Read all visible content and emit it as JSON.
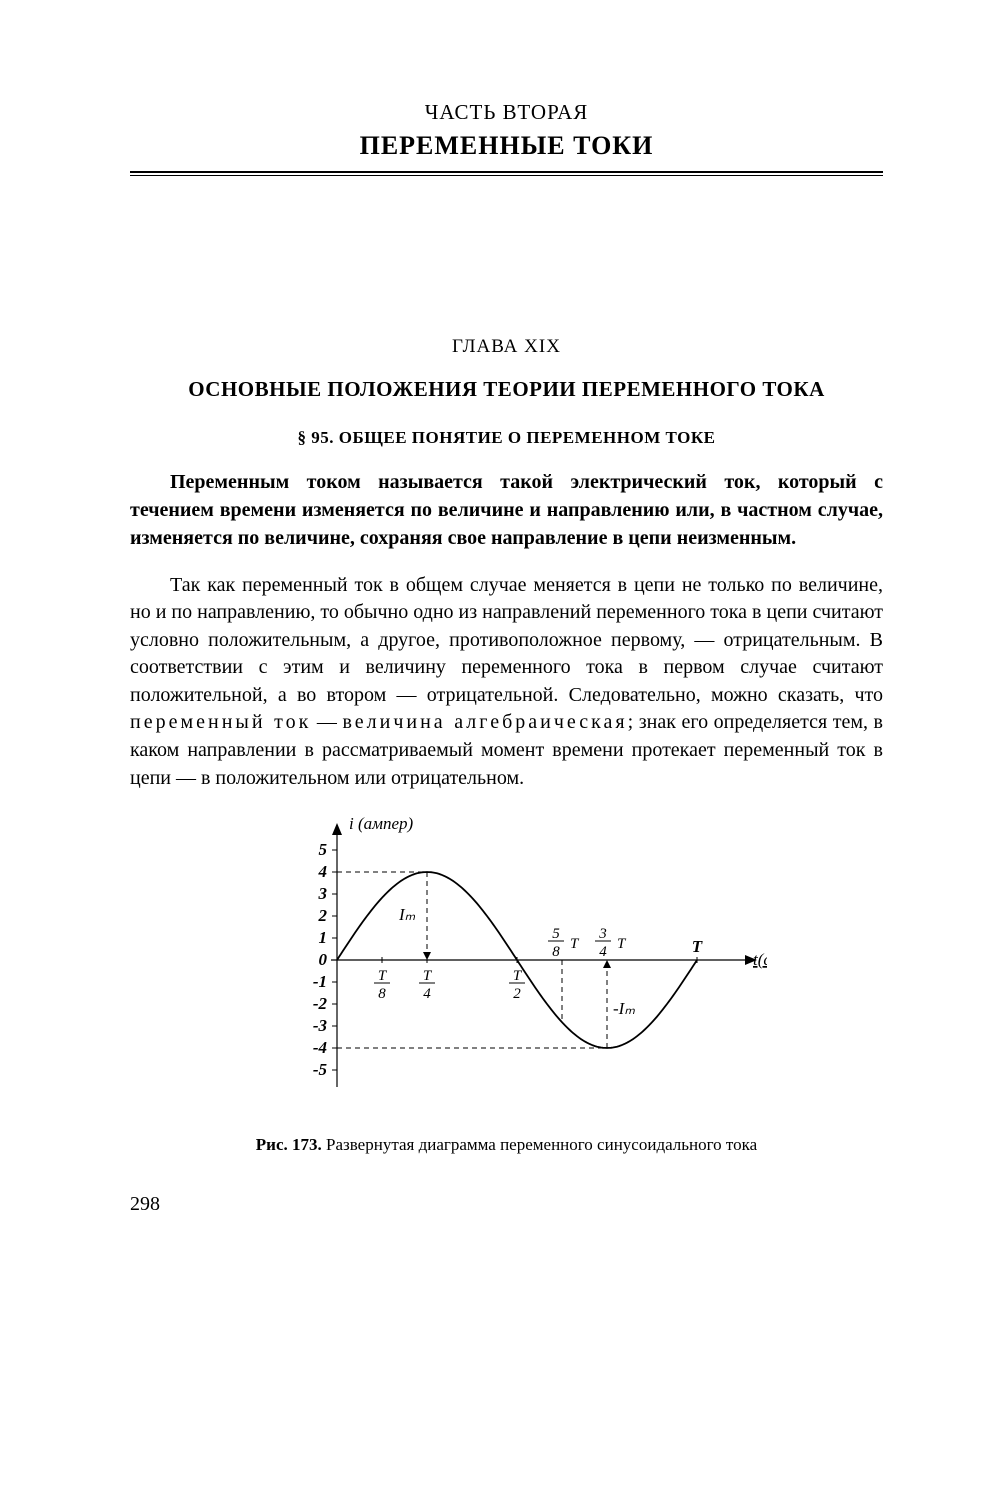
{
  "header": {
    "part_label": "ЧАСТЬ ВТОРАЯ",
    "part_title": "ПЕРЕМЕННЫЕ ТОКИ"
  },
  "chapter": {
    "label": "ГЛАВА XIX",
    "title": "ОСНОВНЫЕ ПОЛОЖЕНИЯ ТЕОРИИ ПЕРЕМЕННОГО ТОКА"
  },
  "section": {
    "title": "§ 95. ОБЩЕЕ ПОНЯТИЕ О ПЕРЕМЕННОМ ТОКЕ"
  },
  "paragraphs": {
    "p1": "Переменным током называется такой электрический ток, ко­торый с течением времени изменяется по величине и направле­нию или, в частном случае, изменяется по величине, сохраняя свое направление в цепи неизменным.",
    "p2a": "Так как переменный ток в общем случае меняется в цепи не только по величине, но и по направлению, то обычно одно из направлений переменного тока в цепи считают условно положи­тельным, а другое, противоположное первому, — отрицательным. В соответствии с этим и величину переменного тока в первом случае считают положительной, а во втором — отрицательной. Следовательно, можно сказать, что ",
    "p2_em1": "переменный ток",
    "p2b": " — ",
    "p2_em2": "ве­личина алгебраическая",
    "p2c": "; знак его определяется тем, в каком направлении в рассматриваемый момент времени проте­кает переменный ток в цепи — в положительном или отрица­тельном."
  },
  "figure": {
    "type": "line",
    "y_axis_label": "i (ампер)",
    "x_axis_label": "t(сек.)",
    "y_ticks": [
      5,
      4,
      3,
      2,
      1,
      0,
      -1,
      -2,
      -3,
      -4,
      -5
    ],
    "ylim": [
      -5,
      5
    ],
    "amplitude": 4,
    "period_fraction_labels": {
      "t8": {
        "num": "T",
        "den": "8"
      },
      "t4": {
        "num": "T",
        "den": "4"
      },
      "t2": {
        "num": "T",
        "den": "2"
      },
      "t58": {
        "num": "5",
        "den": "8",
        "suffix": "T"
      },
      "t34": {
        "num": "3",
        "den": "4",
        "suffix": "T"
      },
      "T": "T"
    },
    "Im_label_top": "Iₘ",
    "Im_label_bot": "-Iₘ",
    "line_color": "#000000",
    "axis_color": "#000000",
    "dash_color": "#000000",
    "background_color": "#ffffff",
    "line_width": 1.8,
    "axis_width": 1.2,
    "dash_pattern": "5,4",
    "caption_bold": "Рис. 173.",
    "caption_rest": " Развернутая диаграмма переменного синусоидального тока"
  },
  "page_number": "298"
}
